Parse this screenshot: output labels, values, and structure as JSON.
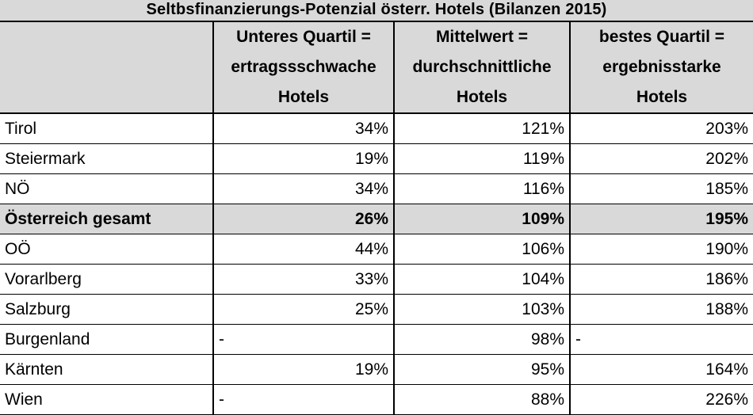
{
  "chart_data": {
    "type": "table",
    "title": "Seltbsfinanzierungs-Potenzial österr. Hotels (Bilanzen 2015)",
    "columns": [
      "",
      [
        "Unteres Quartil =",
        "ertragssschwache",
        "Hotels"
      ],
      [
        "Mittelwert =",
        "durchschnittliche",
        "Hotels"
      ],
      [
        "bestes Quartil =",
        "ergebnisstarke",
        "Hotels"
      ]
    ],
    "rows": [
      {
        "region": "Tirol",
        "values": [
          "34%",
          "121%",
          "203%"
        ],
        "highlight": false
      },
      {
        "region": "Steiermark",
        "values": [
          "19%",
          "119%",
          "202%"
        ],
        "highlight": false
      },
      {
        "region": "NÖ",
        "values": [
          "34%",
          "116%",
          "185%"
        ],
        "highlight": false
      },
      {
        "region": "Österreich gesamt",
        "values": [
          "26%",
          "109%",
          "195%"
        ],
        "highlight": true
      },
      {
        "region": "OÖ",
        "values": [
          "44%",
          "106%",
          "190%"
        ],
        "highlight": false
      },
      {
        "region": "Vorarlberg",
        "values": [
          "33%",
          "104%",
          "186%"
        ],
        "highlight": false
      },
      {
        "region": "Salzburg",
        "values": [
          "25%",
          "103%",
          "188%"
        ],
        "highlight": false
      },
      {
        "region": "Burgenland",
        "values": [
          "-",
          "98%",
          "-"
        ],
        "highlight": false
      },
      {
        "region": "Kärnten",
        "values": [
          "19%",
          "95%",
          "164%"
        ],
        "highlight": false
      },
      {
        "region": "Wien",
        "values": [
          "-",
          "88%",
          "226%"
        ],
        "highlight": false
      }
    ]
  },
  "colors": {
    "header_bg": "#d9d9d9",
    "highlight_bg": "#d9d9d9",
    "border": "#000000"
  }
}
